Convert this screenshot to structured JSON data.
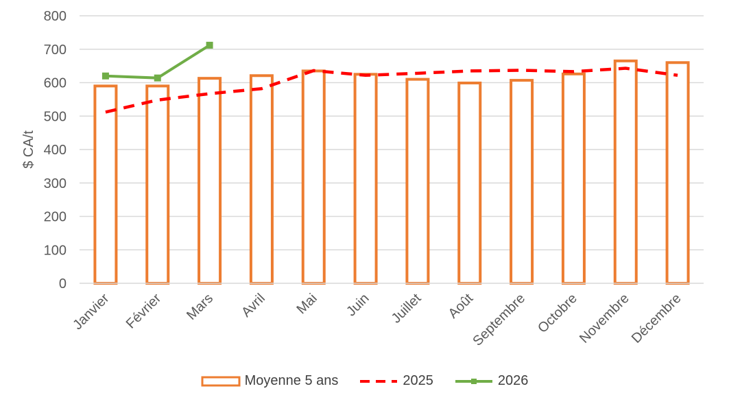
{
  "chart_data": {
    "type": "bar",
    "ylabel": "$ CA/t",
    "ylim": [
      0,
      800
    ],
    "yticks": [
      0,
      100,
      200,
      300,
      400,
      500,
      600,
      700,
      800
    ],
    "grid": true,
    "legend_position": "bottom",
    "categories": [
      "Janvier",
      "Février",
      "Mars",
      "Avril",
      "Mai",
      "Juin",
      "Juillet",
      "Août",
      "Septembre",
      "Octobre",
      "Novembre",
      "Décembre"
    ],
    "series": [
      {
        "name": "Moyenne 5 ans",
        "type": "bar",
        "color": "#ED7D31",
        "values": [
          590,
          590,
          613,
          621,
          635,
          625,
          610,
          599,
          607,
          626,
          665,
          660
        ]
      },
      {
        "name": "2025",
        "type": "line",
        "style": "dashed",
        "color": "#FF0000",
        "values": [
          512,
          548,
          567,
          582,
          636,
          622,
          628,
          635,
          637,
          633,
          643,
          622
        ]
      },
      {
        "name": "2026",
        "type": "line",
        "marker": "square",
        "color": "#70AD47",
        "values": [
          620,
          614,
          712,
          null,
          null,
          null,
          null,
          null,
          null,
          null,
          null,
          null
        ]
      }
    ]
  }
}
